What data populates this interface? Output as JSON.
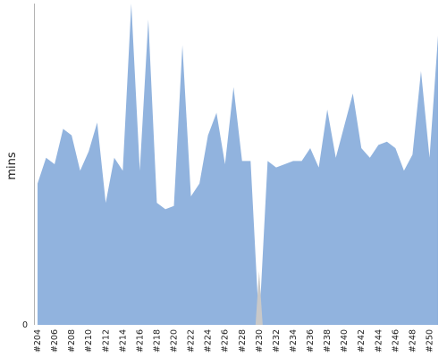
{
  "chart_data": {
    "type": "area",
    "title": "",
    "xlabel": "",
    "ylabel": "mins",
    "ylim": [
      0,
      100
    ],
    "grid": false,
    "legend": "none",
    "x": [
      "#204",
      "#205",
      "#206",
      "#207",
      "#208",
      "#209",
      "#210",
      "#211",
      "#212",
      "#213",
      "#214",
      "#215",
      "#216",
      "#217",
      "#218",
      "#219",
      "#220",
      "#221",
      "#222",
      "#223",
      "#224",
      "#225",
      "#226",
      "#227",
      "#228",
      "#229",
      "#230",
      "#231",
      "#232",
      "#233",
      "#234",
      "#235",
      "#236",
      "#237",
      "#238",
      "#239",
      "#240",
      "#241",
      "#242",
      "#243",
      "#244",
      "#245",
      "#246",
      "#247",
      "#248",
      "#249",
      "#250",
      "#251"
    ],
    "x_tick_labels": [
      "#204",
      "#206",
      "#208",
      "#210",
      "#212",
      "#214",
      "#216",
      "#218",
      "#220",
      "#222",
      "#224",
      "#226",
      "#228",
      "#230",
      "#232",
      "#234",
      "#236",
      "#238",
      "#240",
      "#242",
      "#244",
      "#246",
      "#248",
      "#250"
    ],
    "y_tick_labels": [
      "0"
    ],
    "series": [
      {
        "color": "#91b3de",
        "values": [
          44,
          52,
          50,
          61,
          59,
          48,
          54,
          63,
          38,
          52,
          48,
          100,
          48,
          95,
          38,
          36,
          37,
          87,
          40,
          44,
          59,
          66,
          50,
          74,
          51,
          51,
          0,
          51,
          49,
          50,
          51,
          51,
          55,
          49,
          67,
          52,
          62,
          72,
          55,
          52,
          56,
          57,
          55,
          48,
          53,
          79,
          52,
          90
        ]
      }
    ],
    "missing_marker": {
      "index": 26,
      "color": "#c8c8c8"
    },
    "axis_color": "#b3b3b3"
  }
}
